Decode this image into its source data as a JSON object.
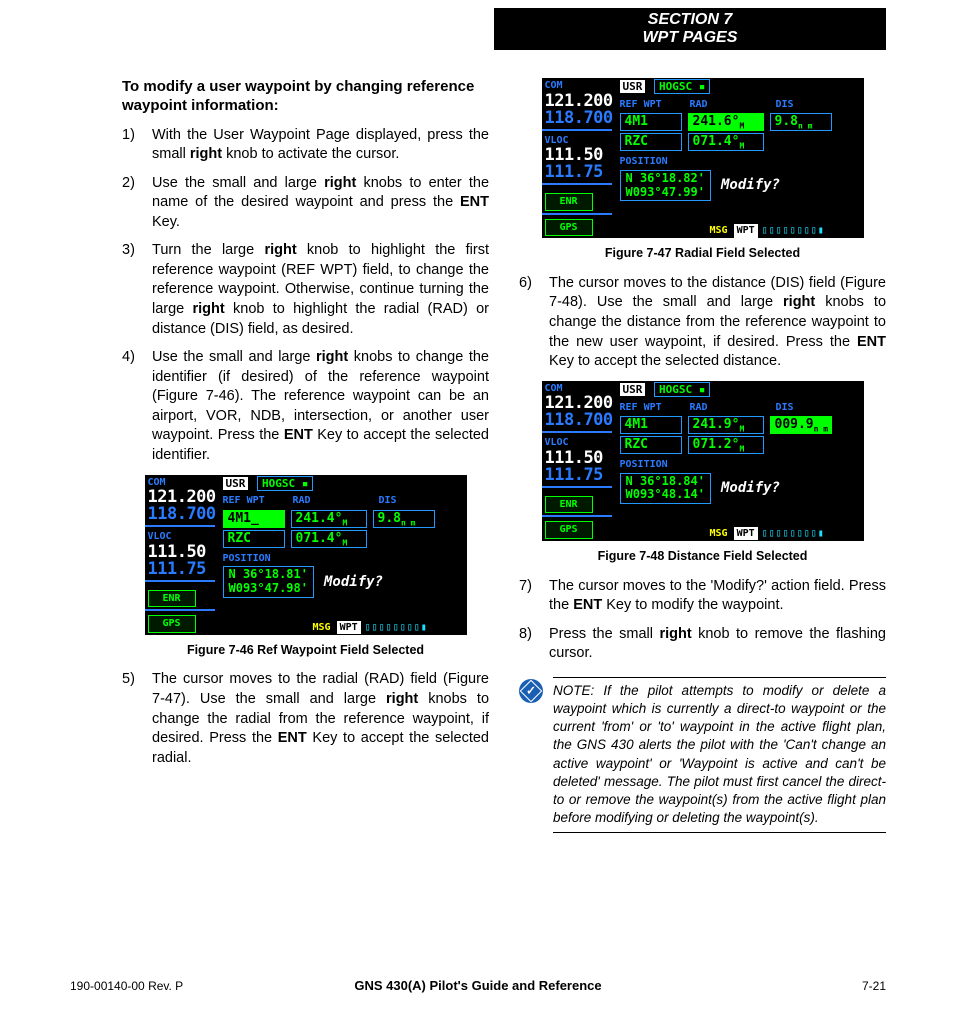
{
  "header": {
    "line1": "SECTION 7",
    "line2": "WPT PAGES"
  },
  "colors": {
    "header_bg": "#000000",
    "header_fg": "#ffffff",
    "gps_bg": "#000000",
    "gps_cyan": "#3be2ff",
    "gps_blue": "#2a7bff",
    "gps_green": "#00ff00",
    "gps_white": "#ffffff",
    "gps_yellow": "#ffff00",
    "note_icon": "#1b5fb4"
  },
  "title": "To modify a user waypoint by changing reference waypoint information:",
  "steps": [
    {
      "n": "1)",
      "text": "With the User Waypoint Page displayed, press the small <b>right</b> knob to activate the cursor."
    },
    {
      "n": "2)",
      "text": "Use the small and large <b>right</b> knobs to enter the name of the desired waypoint and press the <b>ENT</b> Key."
    },
    {
      "n": "3)",
      "text": "Turn the large <b>right</b> knob to highlight the first reference waypoint (REF WPT) field, to change the reference waypoint.  Otherwise, continue turning the large <b>right</b> knob to highlight the radial (RAD) or distance (DIS) field, as desired."
    },
    {
      "n": "4)",
      "text": "Use the small and large <b>right</b> knobs to change the identifier (if desired) of the reference waypoint (Figure 7-46).  The reference waypoint can be an airport, VOR, NDB, intersection, or another user waypoint.  Press the <b>ENT</b> Key to accept the selected identifier."
    },
    {
      "n": "5)",
      "text": "The cursor moves to the radial (RAD) field (Figure 7-47).  Use the small and large <b>right</b> knobs to change the radial from the reference waypoint, if desired.  Press the <b>ENT</b> Key to accept the selected radial."
    },
    {
      "n": "6)",
      "text": "The cursor moves to the distance (DIS) field (Figure 7-48).  Use the small and large <b>right</b> knobs to change the distance from the reference waypoint to the new user waypoint, if desired.  Press the <b>ENT</b> Key to accept the selected distance."
    },
    {
      "n": "7)",
      "text": "The cursor moves to the 'Modify?' action field.  Press the <b>ENT</b> Key to modify the waypoint."
    },
    {
      "n": "8)",
      "text": "Press the small <b>right</b> knob to remove the flashing cursor."
    }
  ],
  "note": "NOTE:  If the pilot attempts to modify or delete a waypoint which is currently a direct-to waypoint or the current 'from' or 'to' waypoint in the active flight plan, the GNS 430 alerts the pilot with the 'Can't change an active waypoint' or 'Waypoint is active and can't be deleted' message.  The pilot must first cancel the direct-to or remove the waypoint(s) from the active flight plan before modifying or deleting the waypoint(s).",
  "figures": {
    "f46": {
      "caption": "Figure 7-46  Ref Waypoint Field Selected",
      "com_active": "121.200",
      "com_standby": "118.700",
      "vloc_active": "111.50",
      "vloc_standby": "111.75",
      "usr": "HOGSC",
      "ref_labels": [
        "REF WPT",
        "RAD",
        "DIS"
      ],
      "row1": {
        "ref": "4M1_",
        "rad": "241.4°",
        "dis": "9.8",
        "ref_hl": true,
        "rad_hl": false,
        "dis_hl": false
      },
      "row2": {
        "ref": "RZC",
        "rad": "071.4°"
      },
      "pos": [
        "N 36°18.81'",
        "W093°47.98'"
      ],
      "modify": "Modify?",
      "enr": "ENR",
      "gps": "GPS",
      "msg": "MSG",
      "wpt": "WPT"
    },
    "f47": {
      "caption": "Figure 7-47  Radial Field Selected",
      "com_active": "121.200",
      "com_standby": "118.700",
      "vloc_active": "111.50",
      "vloc_standby": "111.75",
      "usr": "HOGSC",
      "ref_labels": [
        "REF WPT",
        "RAD",
        "DIS"
      ],
      "row1": {
        "ref": "4M1",
        "rad": "241.6°",
        "dis": "9.8",
        "ref_hl": false,
        "rad_hl": true,
        "dis_hl": false
      },
      "row2": {
        "ref": "RZC",
        "rad": "071.4°"
      },
      "pos": [
        "N 36°18.82'",
        "W093°47.99'"
      ],
      "modify": "Modify?",
      "enr": "ENR",
      "gps": "GPS",
      "msg": "MSG",
      "wpt": "WPT"
    },
    "f48": {
      "caption": "Figure 7-48  Distance Field Selected",
      "com_active": "121.200",
      "com_standby": "118.700",
      "vloc_active": "111.50",
      "vloc_standby": "111.75",
      "usr": "HOGSC",
      "ref_labels": [
        "REF WPT",
        "RAD",
        "DIS"
      ],
      "row1": {
        "ref": "4M1",
        "rad": "241.9°",
        "dis": "009.9",
        "ref_hl": false,
        "rad_hl": false,
        "dis_hl": true
      },
      "row2": {
        "ref": "RZC",
        "rad": "071.2°"
      },
      "pos": [
        "N 36°18.84'",
        "W093°48.14'"
      ],
      "modify": "Modify?",
      "enr": "ENR",
      "gps": "GPS",
      "msg": "MSG",
      "wpt": "WPT"
    }
  },
  "footer": {
    "left": "190-00140-00  Rev. P",
    "center": "GNS 430(A) Pilot's Guide and Reference",
    "right": "7-21"
  },
  "labels": {
    "com": "COM",
    "vloc": "VLOC",
    "usr": "USR",
    "position": "POSITION",
    "nm": "n m"
  }
}
